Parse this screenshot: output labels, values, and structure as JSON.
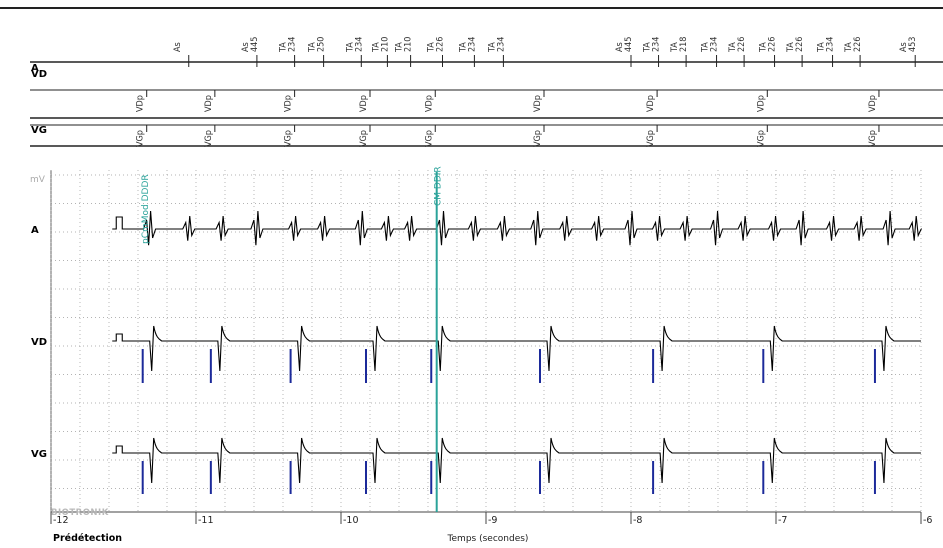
{
  "chart_data": {
    "type": "line",
    "xlabel": "Temps (secondes)",
    "x_range": [
      -12,
      -6
    ],
    "x_ticks": [
      "-12",
      "-11",
      "-10",
      "-9",
      "-8",
      "-7",
      "-6"
    ],
    "unit_label": "mV",
    "footer_left": "Prédétection",
    "brand": "BIOTRONIK",
    "marker_channels": [
      {
        "name": "A",
        "events": [
          {
            "t": -11.05,
            "label": "As"
          },
          {
            "t": -10.58,
            "label": "As 445"
          },
          {
            "t": -10.32,
            "label": "TA 234"
          },
          {
            "t": -10.12,
            "label": "TA 250"
          },
          {
            "t": -9.86,
            "label": "TA 234"
          },
          {
            "t": -9.68,
            "label": "TA 210"
          },
          {
            "t": -9.52,
            "label": "TA 210"
          },
          {
            "t": -9.3,
            "label": "TA 226"
          },
          {
            "t": -9.08,
            "label": "TA 234"
          },
          {
            "t": -8.88,
            "label": "TA 234"
          },
          {
            "t": -8.0,
            "label": "As 445"
          },
          {
            "t": -7.81,
            "label": "TA 234"
          },
          {
            "t": -7.62,
            "label": "TA 218"
          },
          {
            "t": -7.41,
            "label": "TA 234"
          },
          {
            "t": -7.22,
            "label": "TA 226"
          },
          {
            "t": -7.01,
            "label": "TA 226"
          },
          {
            "t": -6.82,
            "label": "TA 226"
          },
          {
            "t": -6.61,
            "label": "TA 234"
          },
          {
            "t": -6.42,
            "label": "TA 226"
          },
          {
            "t": -6.04,
            "label": "As 453"
          }
        ]
      },
      {
        "name": "VD",
        "events": [
          {
            "t": -11.34,
            "label": "VDp"
          },
          {
            "t": -10.87,
            "label": "VDp"
          },
          {
            "t": -10.32,
            "label": "VDp"
          },
          {
            "t": -9.8,
            "label": "VDp"
          },
          {
            "t": -9.35,
            "label": "VDp"
          },
          {
            "t": -8.6,
            "label": "VDp"
          },
          {
            "t": -7.82,
            "label": "VDp"
          },
          {
            "t": -7.06,
            "label": "VDp"
          },
          {
            "t": -6.29,
            "label": "VDp"
          }
        ]
      },
      {
        "name": "VG",
        "events": [
          {
            "t": -11.34,
            "label": "VGp"
          },
          {
            "t": -10.87,
            "label": "VGp"
          },
          {
            "t": -10.32,
            "label": "VGp"
          },
          {
            "t": -9.8,
            "label": "VGp"
          },
          {
            "t": -9.35,
            "label": "VGp"
          },
          {
            "t": -8.6,
            "label": "VGp"
          },
          {
            "t": -7.82,
            "label": "VGp"
          },
          {
            "t": -7.06,
            "label": "VGp"
          },
          {
            "t": -6.29,
            "label": "VGp"
          }
        ]
      }
    ],
    "annotations": [
      {
        "t": -11.4,
        "label": "pCmMod DDDR"
      },
      {
        "t": -9.34,
        "label": "CM DDIR"
      }
    ],
    "mode_switch_line_t": -9.34,
    "calibration_pulse_t": -11.55,
    "egm_channels": [
      {
        "name": "A",
        "atrial_beats": [
          -11.32,
          -11.05,
          -10.82,
          -10.58,
          -10.32,
          -10.12,
          -9.86,
          -9.68,
          -9.52,
          -9.3,
          -9.08,
          -8.88,
          -8.65,
          -8.45,
          -8.23,
          -8.0,
          -7.81,
          -7.62,
          -7.41,
          -7.22,
          -7.01,
          -6.82,
          -6.61,
          -6.42,
          -6.22,
          -6.04
        ]
      },
      {
        "name": "VD",
        "paced_beats": [
          -11.34,
          -10.87,
          -10.32,
          -9.8,
          -9.35,
          -8.6,
          -7.82,
          -7.06,
          -6.29
        ]
      },
      {
        "name": "VG",
        "paced_beats": [
          -11.34,
          -10.87,
          -10.32,
          -9.8,
          -9.35,
          -8.6,
          -7.82,
          -7.06,
          -6.29
        ]
      }
    ],
    "colors": {
      "trace": "#000000",
      "grid": "#9a9a9a",
      "annotation": "#2aa39a",
      "pace_marker": "#1c2a9a"
    }
  }
}
